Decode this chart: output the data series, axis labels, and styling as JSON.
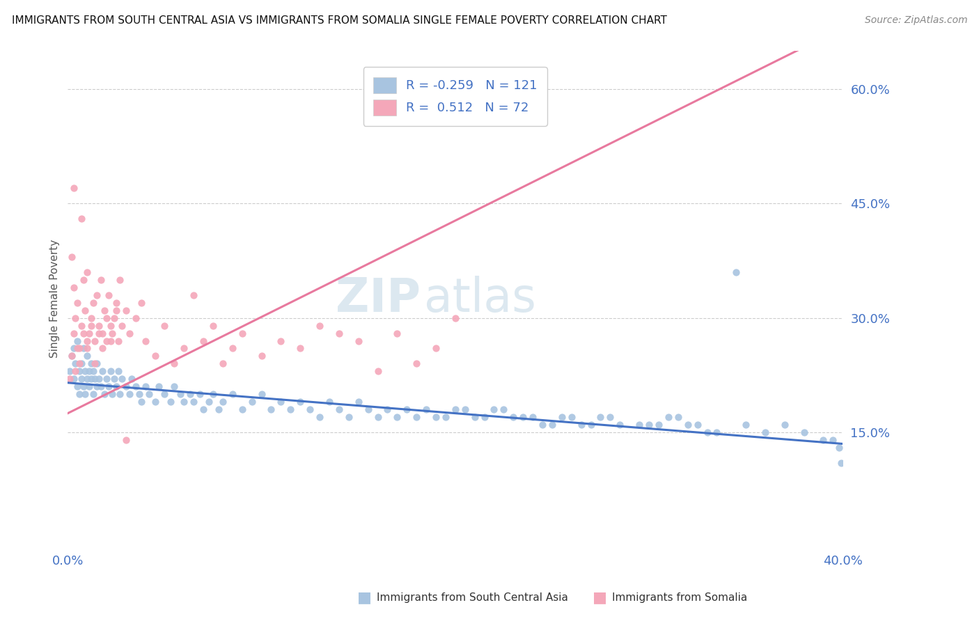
{
  "title": "IMMIGRANTS FROM SOUTH CENTRAL ASIA VS IMMIGRANTS FROM SOMALIA SINGLE FEMALE POVERTY CORRELATION CHART",
  "source": "Source: ZipAtlas.com",
  "ylabel": "Single Female Poverty",
  "xlim": [
    0.0,
    0.4
  ],
  "ylim": [
    0.0,
    0.65
  ],
  "yticks": [
    0.15,
    0.3,
    0.45,
    0.6
  ],
  "ytick_labels": [
    "15.0%",
    "30.0%",
    "45.0%",
    "60.0%"
  ],
  "r1": -0.259,
  "n1": 121,
  "r2": 0.512,
  "n2": 72,
  "color1": "#a8c4e0",
  "color2": "#f4a7b9",
  "line_color1": "#4472c4",
  "line_color2": "#e8799e",
  "watermark_zip": "ZIP",
  "watermark_atlas": "atlas",
  "legend_label1": "Immigrants from South Central Asia",
  "legend_label2": "Immigrants from Somalia",
  "blue_x": [
    0.001,
    0.002,
    0.003,
    0.003,
    0.004,
    0.005,
    0.005,
    0.006,
    0.006,
    0.007,
    0.007,
    0.008,
    0.008,
    0.009,
    0.009,
    0.01,
    0.01,
    0.011,
    0.011,
    0.012,
    0.012,
    0.013,
    0.013,
    0.014,
    0.015,
    0.015,
    0.016,
    0.017,
    0.018,
    0.019,
    0.02,
    0.021,
    0.022,
    0.023,
    0.024,
    0.025,
    0.026,
    0.027,
    0.028,
    0.03,
    0.032,
    0.033,
    0.035,
    0.037,
    0.038,
    0.04,
    0.042,
    0.045,
    0.047,
    0.05,
    0.053,
    0.055,
    0.058,
    0.06,
    0.063,
    0.065,
    0.068,
    0.07,
    0.073,
    0.075,
    0.078,
    0.08,
    0.085,
    0.09,
    0.095,
    0.1,
    0.105,
    0.11,
    0.115,
    0.12,
    0.125,
    0.13,
    0.135,
    0.14,
    0.145,
    0.15,
    0.155,
    0.16,
    0.165,
    0.17,
    0.175,
    0.18,
    0.185,
    0.19,
    0.2,
    0.21,
    0.22,
    0.23,
    0.24,
    0.25,
    0.26,
    0.27,
    0.28,
    0.3,
    0.31,
    0.32,
    0.33,
    0.35,
    0.36,
    0.37,
    0.38,
    0.39,
    0.395,
    0.398,
    0.399,
    0.195,
    0.205,
    0.215,
    0.225,
    0.235,
    0.245,
    0.255,
    0.265,
    0.275,
    0.285,
    0.295,
    0.305,
    0.315,
    0.325,
    0.335,
    0.345
  ],
  "blue_y": [
    0.23,
    0.25,
    0.22,
    0.26,
    0.24,
    0.21,
    0.27,
    0.2,
    0.23,
    0.22,
    0.24,
    0.21,
    0.26,
    0.23,
    0.2,
    0.22,
    0.25,
    0.21,
    0.23,
    0.22,
    0.24,
    0.2,
    0.23,
    0.22,
    0.21,
    0.24,
    0.22,
    0.21,
    0.23,
    0.2,
    0.22,
    0.21,
    0.23,
    0.2,
    0.22,
    0.21,
    0.23,
    0.2,
    0.22,
    0.21,
    0.2,
    0.22,
    0.21,
    0.2,
    0.19,
    0.21,
    0.2,
    0.19,
    0.21,
    0.2,
    0.19,
    0.21,
    0.2,
    0.19,
    0.2,
    0.19,
    0.2,
    0.18,
    0.19,
    0.2,
    0.18,
    0.19,
    0.2,
    0.18,
    0.19,
    0.2,
    0.18,
    0.19,
    0.18,
    0.19,
    0.18,
    0.17,
    0.19,
    0.18,
    0.17,
    0.19,
    0.18,
    0.17,
    0.18,
    0.17,
    0.18,
    0.17,
    0.18,
    0.17,
    0.18,
    0.17,
    0.18,
    0.17,
    0.17,
    0.16,
    0.17,
    0.16,
    0.17,
    0.16,
    0.17,
    0.16,
    0.15,
    0.16,
    0.15,
    0.16,
    0.15,
    0.14,
    0.14,
    0.13,
    0.11,
    0.17,
    0.18,
    0.17,
    0.18,
    0.17,
    0.16,
    0.17,
    0.16,
    0.17,
    0.16,
    0.16,
    0.16,
    0.17,
    0.16,
    0.15,
    0.36
  ],
  "pink_x": [
    0.001,
    0.002,
    0.003,
    0.003,
    0.004,
    0.005,
    0.005,
    0.006,
    0.007,
    0.007,
    0.008,
    0.009,
    0.01,
    0.01,
    0.011,
    0.012,
    0.013,
    0.014,
    0.015,
    0.016,
    0.017,
    0.018,
    0.019,
    0.02,
    0.021,
    0.022,
    0.023,
    0.024,
    0.025,
    0.026,
    0.027,
    0.028,
    0.03,
    0.032,
    0.035,
    0.038,
    0.04,
    0.045,
    0.05,
    0.055,
    0.06,
    0.065,
    0.07,
    0.075,
    0.08,
    0.085,
    0.09,
    0.1,
    0.11,
    0.12,
    0.13,
    0.14,
    0.15,
    0.16,
    0.17,
    0.18,
    0.19,
    0.2,
    0.002,
    0.003,
    0.004,
    0.006,
    0.008,
    0.01,
    0.012,
    0.014,
    0.016,
    0.018,
    0.02,
    0.022,
    0.025,
    0.03
  ],
  "pink_y": [
    0.22,
    0.38,
    0.28,
    0.34,
    0.3,
    0.26,
    0.32,
    0.24,
    0.43,
    0.29,
    0.28,
    0.31,
    0.26,
    0.36,
    0.28,
    0.3,
    0.32,
    0.27,
    0.33,
    0.29,
    0.35,
    0.28,
    0.31,
    0.27,
    0.33,
    0.29,
    0.28,
    0.3,
    0.32,
    0.27,
    0.35,
    0.29,
    0.31,
    0.28,
    0.3,
    0.32,
    0.27,
    0.25,
    0.29,
    0.24,
    0.26,
    0.33,
    0.27,
    0.29,
    0.24,
    0.26,
    0.28,
    0.25,
    0.27,
    0.26,
    0.29,
    0.28,
    0.27,
    0.23,
    0.28,
    0.24,
    0.26,
    0.3,
    0.25,
    0.47,
    0.23,
    0.26,
    0.35,
    0.27,
    0.29,
    0.24,
    0.28,
    0.26,
    0.3,
    0.27,
    0.31,
    0.14
  ]
}
